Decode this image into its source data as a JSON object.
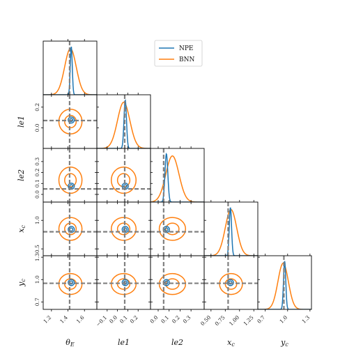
{
  "colors": {
    "npe": "#1f77b4",
    "bnn": "#ff7f0e",
    "truth": "#808080"
  },
  "chart_data": {
    "type": "corner",
    "legend": {
      "placement": "top-center",
      "entries": [
        {
          "name": "NPE",
          "color": "#1f77b4"
        },
        {
          "name": "BNN",
          "color": "#ff7f0e"
        }
      ]
    },
    "parameters": [
      {
        "key": "theta_E",
        "label": "θ_E",
        "range": [
          1.1,
          1.75
        ],
        "ticks": [
          1.2,
          1.4,
          1.6
        ],
        "tick_labels": [
          "1.2",
          "1.4",
          "1.6"
        ],
        "truth": 1.42,
        "npe": {
          "mean": 1.44,
          "sd": 0.012
        },
        "bnn": {
          "mean": 1.43,
          "sd": 0.07
        }
      },
      {
        "key": "le1",
        "label": "le1",
        "range": [
          -0.2,
          0.32
        ],
        "ticks": [
          -0.1,
          0.0,
          0.1,
          0.2
        ],
        "tick_labels": [
          "−0.1",
          "0.0",
          "0.1",
          "0.2"
        ],
        "truth": 0.07,
        "npe": {
          "mean": 0.075,
          "sd": 0.012
        },
        "bnn": {
          "mean": 0.06,
          "sd": 0.06
        }
      },
      {
        "key": "le2",
        "label": "le2",
        "range": [
          -0.07,
          0.42
        ],
        "ticks": [
          0.0,
          0.1,
          0.2,
          0.3
        ],
        "tick_labels": [
          "0.0",
          "0.1",
          "0.2",
          "0.3"
        ],
        "truth": 0.05,
        "npe": {
          "mean": 0.075,
          "sd": 0.013
        },
        "bnn": {
          "mean": 0.13,
          "sd": 0.06
        }
      },
      {
        "key": "x_c",
        "label": "x_c",
        "range": [
          0.38,
          1.32
        ],
        "ticks": [
          0.5,
          0.75,
          1.0,
          1.25
        ],
        "tick_labels": [
          "0.50",
          "0.75",
          "1.00",
          "1.25"
        ],
        "truth": 0.8,
        "npe": {
          "mean": 0.84,
          "sd": 0.02
        },
        "bnn": {
          "mean": 0.85,
          "sd": 0.1
        }
      },
      {
        "key": "y_c",
        "label": "y_c",
        "range": [
          0.6,
          1.32
        ],
        "ticks": [
          0.7,
          1.0,
          1.3
        ],
        "tick_labels": [
          "0.7",
          "1.0",
          "1.3"
        ],
        "truth": 0.95,
        "npe": {
          "mean": 0.96,
          "sd": 0.015
        },
        "bnn": {
          "mean": 0.94,
          "sd": 0.07
        }
      }
    ],
    "left_tick_overrides": {
      "le1": {
        "ticks": [
          0.0,
          0.2
        ],
        "tick_labels": [
          "0.0",
          "0.2"
        ]
      },
      "le2": {
        "ticks": [
          0.0,
          0.1,
          0.2,
          0.3
        ],
        "tick_labels": [
          "0.0",
          "0.1",
          "0.2",
          "0.3"
        ]
      },
      "x_c": {
        "ticks": [
          0.5,
          1.0
        ],
        "tick_labels": [
          "0.5",
          "1.0"
        ]
      },
      "y_c": {
        "ticks": [
          0.7,
          1.0,
          1.3
        ],
        "tick_labels": [
          "0.7",
          "1.0",
          "1.3"
        ]
      }
    }
  }
}
